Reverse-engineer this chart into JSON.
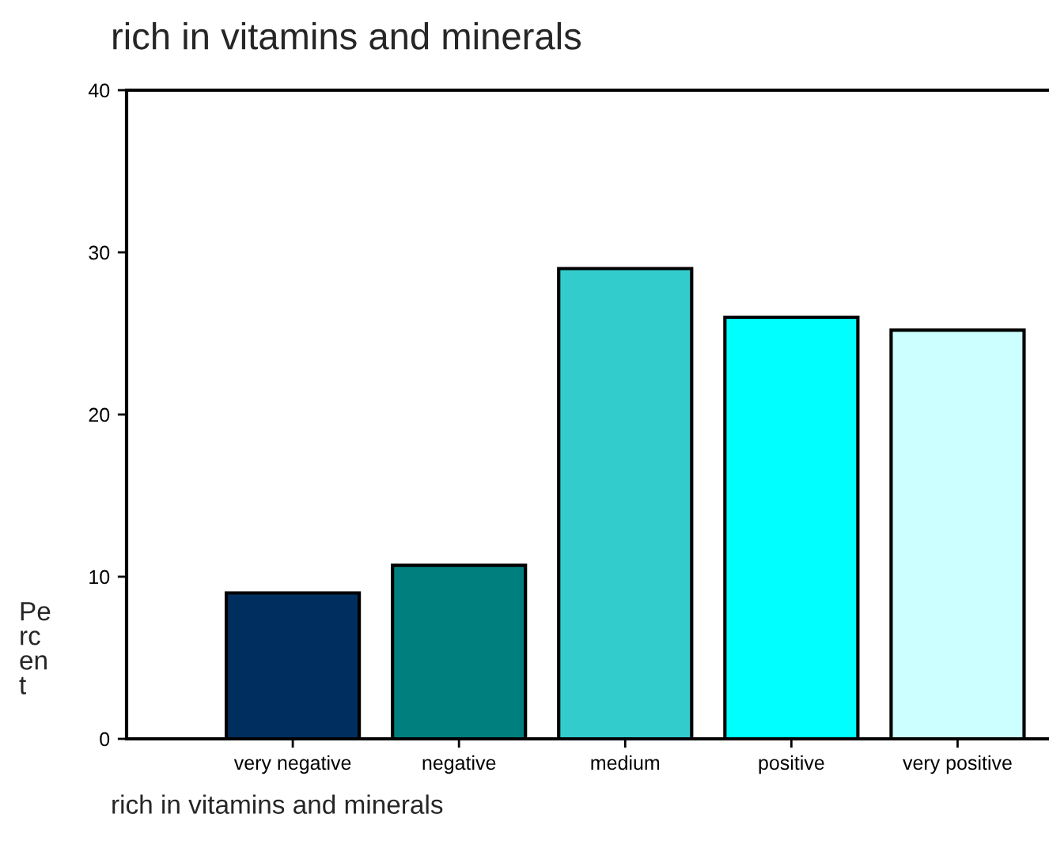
{
  "chart_data": {
    "type": "bar",
    "title": "rich in vitamins and minerals",
    "xlabel": "rich in vitamins and minerals",
    "ylabel": "Percent",
    "categories": [
      "very negative",
      "negative",
      "medium",
      "positive",
      "very positive"
    ],
    "values": [
      9.0,
      10.7,
      29.0,
      26.0,
      25.2
    ],
    "colors": [
      "#002f5f",
      "#007f7f",
      "#33cccc",
      "#00ffff",
      "#ccffff"
    ],
    "ylim": [
      0,
      40
    ],
    "yticks": [
      0,
      10,
      20,
      30,
      40
    ],
    "grid": false,
    "legend": false
  }
}
